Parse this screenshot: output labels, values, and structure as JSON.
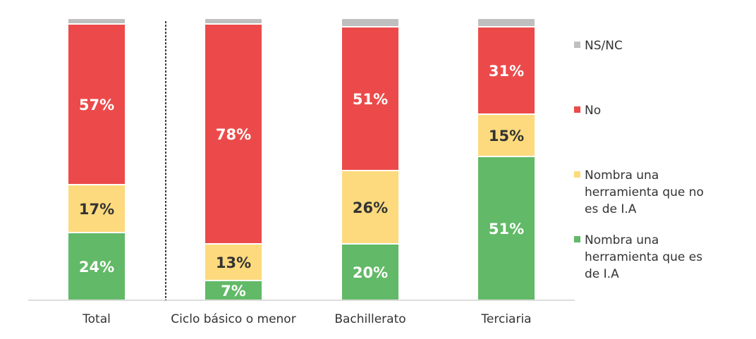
{
  "chart_data": {
    "type": "bar",
    "stacked": true,
    "categories": [
      "Total",
      "Ciclo básico o menor",
      "Bachillerato",
      "Terciaria"
    ],
    "ylim": [
      0,
      100
    ],
    "grid": false,
    "legend_placement": "right",
    "series": [
      {
        "name": "Nombra una herramienta que es de I.A",
        "color": "#62B967",
        "label_color": "#ffffff",
        "values": [
          24,
          7,
          20,
          51
        ],
        "labels": [
          "24%",
          "7%",
          "20%",
          "51%"
        ]
      },
      {
        "name": "Nombra una herramienta que no es de I.A",
        "color": "#FDDA7D",
        "label_color": "#333333",
        "values": [
          17,
          13,
          26,
          15
        ],
        "labels": [
          "17%",
          "13%",
          "26%",
          "15%"
        ]
      },
      {
        "name": "No",
        "color": "#EC4A4A",
        "label_color": "#ffffff",
        "values": [
          57,
          78,
          51,
          31
        ],
        "labels": [
          "57%",
          "78%",
          "51%",
          "31%"
        ]
      },
      {
        "name": "NS/NC",
        "color": "#BFBFBF",
        "label_color": "#333333",
        "values": [
          2,
          2,
          3,
          3
        ],
        "labels": [
          "",
          "",
          "",
          ""
        ]
      }
    ],
    "legend_lines": [
      [
        "NS/NC"
      ],
      [
        "No"
      ],
      [
        "Nombra una",
        "herramienta que no",
        "es de I.A"
      ],
      [
        "Nombra una",
        "herramienta que es",
        "de I.A"
      ]
    ]
  }
}
